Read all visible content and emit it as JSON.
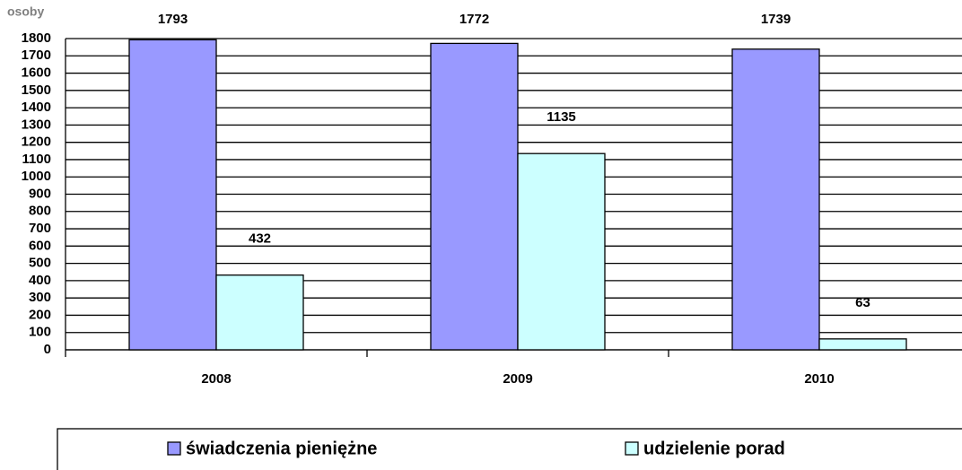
{
  "chart_data": {
    "type": "bar",
    "y_label": "osoby",
    "categories": [
      "2008",
      "2009",
      "2010"
    ],
    "series": [
      {
        "name": "świadczenia pieniężne",
        "color": "#9999ff",
        "values": [
          1793,
          1772,
          1739
        ]
      },
      {
        "name": "udzielenie porad",
        "color": "#ccffff",
        "values": [
          432,
          1135,
          63
        ]
      }
    ],
    "ylim": [
      0,
      1800
    ],
    "yticks": [
      0,
      100,
      200,
      300,
      400,
      500,
      600,
      700,
      800,
      900,
      1000,
      1100,
      1200,
      1300,
      1400,
      1500,
      1600,
      1700,
      1800
    ],
    "grid": true,
    "legend": "bottom"
  }
}
